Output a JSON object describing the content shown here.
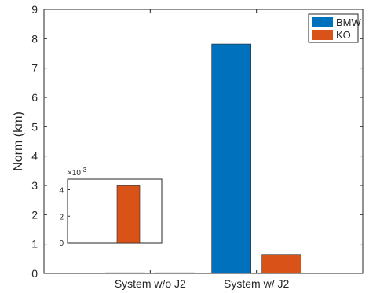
{
  "chart_data": [
    {
      "type": "bar",
      "ylabel": "Norm (km)",
      "xlabel": "",
      "categories": [
        "System w/o J2",
        "System w/ J2"
      ],
      "series": [
        {
          "name": "BMW",
          "color": "#0072BD",
          "values": [
            0.0,
            7.82
          ]
        },
        {
          "name": "KO",
          "color": "#D95319",
          "values": [
            0.0043,
            0.65
          ]
        }
      ],
      "ylim": [
        0,
        9
      ],
      "yticks": [
        "0",
        "1",
        "2",
        "3",
        "4",
        "5",
        "6",
        "7",
        "8",
        "9"
      ],
      "grid": false,
      "legend_position": "top-right"
    },
    {
      "type": "bar",
      "role": "inset",
      "exponent_label": "×10",
      "exponent_power": "-3",
      "series": [
        {
          "name": "KO",
          "color": "#D95319",
          "values": [
            4.3
          ]
        }
      ],
      "ylim": [
        0,
        4.8
      ],
      "yticks": [
        "0",
        "2",
        "4"
      ],
      "grid": false
    }
  ]
}
